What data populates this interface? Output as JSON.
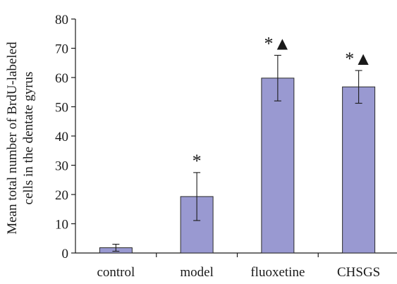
{
  "chart_data": {
    "type": "bar",
    "title": "",
    "xlabel": "",
    "ylabel": "Mean total number of BrdU-labeled cells in the dentate gyrus",
    "ylabel_lines": [
      "Mean total number of BrdU-labeled",
      "cells in the dentate gyrus"
    ],
    "ylim": [
      0,
      80
    ],
    "yticks": [
      0,
      10,
      20,
      30,
      40,
      50,
      60,
      70,
      80
    ],
    "categories": [
      "control",
      "model",
      "fluoxetine",
      "CHSGS"
    ],
    "values": [
      1.8,
      19.3,
      59.8,
      56.8
    ],
    "errors": [
      1.2,
      8.2,
      7.8,
      5.6
    ],
    "significance": [
      "",
      "*",
      "*▲",
      "*▲"
    ],
    "grid": false,
    "colors": {
      "bar": "#9999d1",
      "bar_stroke": "#2b2b2b",
      "axis": "#1a1a1a"
    }
  }
}
